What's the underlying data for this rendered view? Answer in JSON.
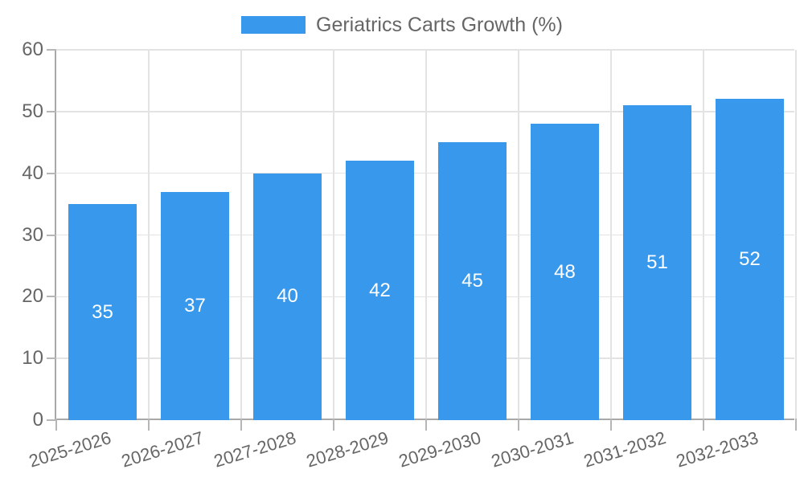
{
  "chart_data": {
    "type": "bar",
    "title": "Geriatrics Carts Growth (%)",
    "categories": [
      "2025-2026",
      "2026-2027",
      "2027-2028",
      "2028-2029",
      "2029-2030",
      "2030-2031",
      "2031-2032",
      "2032-2033"
    ],
    "values": [
      35,
      37,
      40,
      42,
      45,
      48,
      51,
      52
    ],
    "xlabel": "",
    "ylabel": "",
    "ylim": [
      0,
      60
    ],
    "yticks": [
      0,
      10,
      20,
      30,
      40,
      50,
      60
    ],
    "grid": true,
    "legend_position": "top-center",
    "bar_value_labels": "white, centered vertically inside each bar",
    "colors": {
      "bar": "#3898ec",
      "bar_label_text": "#ffffff",
      "axis_text": "#666666",
      "gridline": "#e3e3e3",
      "axis_line": "#a8a8a8",
      "tick_mark": "#b6b6b6",
      "background": "#ffffff"
    }
  }
}
